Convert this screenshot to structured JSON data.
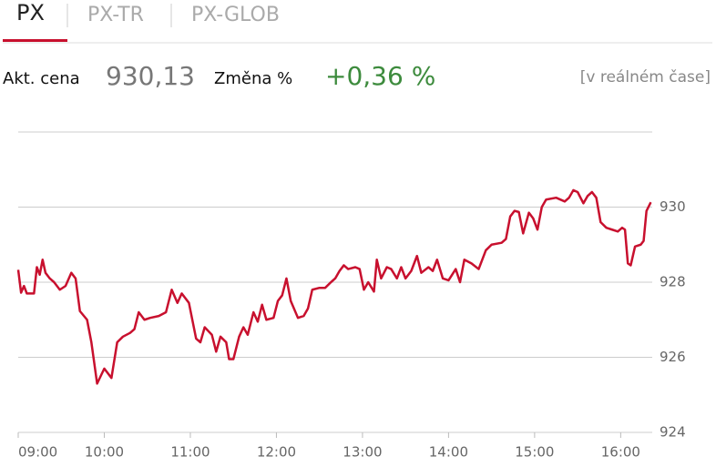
{
  "header": {
    "tabs": [
      "PX",
      "PX-TR",
      "PX-GLOB"
    ]
  },
  "quote": {
    "price_label": "Akt. cena",
    "price": "930,13",
    "change_label": "Změna %",
    "change": "+0,36 %",
    "realtime": "[v reálném čase]"
  },
  "chart_data": {
    "type": "line",
    "x": [
      540,
      542,
      544,
      546,
      551,
      553,
      555,
      557,
      559,
      562,
      565,
      569,
      573,
      577,
      580,
      583,
      588,
      591,
      595,
      600,
      605,
      609,
      613,
      618,
      621,
      624,
      628,
      632,
      638,
      643,
      647,
      651,
      654,
      659,
      664,
      667,
      670,
      675,
      678,
      681,
      685,
      687,
      690,
      694,
      697,
      700,
      704,
      707,
      710,
      713,
      718,
      721,
      724,
      727,
      730,
      735,
      739,
      742,
      745,
      750,
      754,
      758,
      761,
      764,
      767,
      770,
      775,
      778,
      781,
      784,
      788,
      790,
      793,
      797,
      800,
      804,
      807,
      810,
      814,
      818,
      821,
      826,
      829,
      832,
      836,
      840,
      845,
      848,
      851,
      856,
      861,
      866,
      870,
      877,
      880,
      883,
      886,
      889,
      892,
      896,
      899,
      902,
      905,
      908,
      915,
      921,
      924,
      927,
      930,
      934,
      937,
      940,
      943,
      946,
      950,
      954,
      958,
      961,
      963,
      965,
      967,
      970,
      974,
      976,
      978,
      981
    ],
    "series": [
      {
        "color": "#c8102e",
        "values": [
          928.33,
          927.72,
          927.9,
          927.7,
          927.7,
          928.4,
          928.2,
          928.6,
          928.25,
          928.1,
          928.0,
          927.8,
          927.9,
          928.25,
          928.1,
          927.23,
          927.0,
          926.4,
          925.3,
          925.7,
          925.45,
          926.4,
          926.55,
          926.65,
          926.75,
          927.2,
          927.0,
          927.05,
          927.1,
          927.2,
          927.8,
          927.45,
          927.7,
          927.45,
          926.5,
          926.4,
          926.8,
          926.6,
          926.15,
          926.55,
          926.4,
          925.95,
          925.95,
          926.55,
          926.8,
          926.6,
          927.2,
          926.95,
          927.4,
          927.0,
          927.05,
          927.5,
          927.65,
          928.1,
          927.5,
          927.05,
          927.1,
          927.3,
          927.8,
          927.85,
          927.85,
          928.0,
          928.1,
          928.3,
          928.45,
          928.35,
          928.4,
          928.35,
          927.8,
          928.0,
          927.75,
          928.6,
          928.1,
          928.4,
          928.35,
          928.1,
          928.4,
          928.1,
          928.3,
          928.7,
          928.25,
          928.4,
          928.3,
          928.6,
          928.1,
          928.05,
          928.35,
          928.0,
          928.6,
          928.5,
          928.35,
          928.85,
          929.0,
          929.05,
          929.15,
          929.75,
          929.9,
          929.87,
          929.3,
          929.85,
          929.7,
          929.4,
          930.0,
          930.2,
          930.25,
          930.15,
          930.25,
          930.45,
          930.4,
          930.1,
          930.3,
          930.4,
          930.25,
          929.6,
          929.45,
          929.4,
          929.35,
          929.45,
          929.4,
          928.5,
          928.45,
          928.95,
          929.0,
          929.1,
          929.9,
          930.13
        ]
      }
    ],
    "xlim": [
      540,
      982
    ],
    "xticks": [
      {
        "value": 540,
        "label": "09:00"
      },
      {
        "value": 600,
        "label": "10:00"
      },
      {
        "value": 660,
        "label": "11:00"
      },
      {
        "value": 720,
        "label": "12:00"
      },
      {
        "value": 780,
        "label": "13:00"
      },
      {
        "value": 840,
        "label": "14:00"
      },
      {
        "value": 900,
        "label": "15:00"
      },
      {
        "value": 960,
        "label": "16:00"
      }
    ],
    "ylim": [
      924,
      932
    ],
    "yticks": [
      924,
      926,
      928,
      930
    ],
    "grid": true
  }
}
